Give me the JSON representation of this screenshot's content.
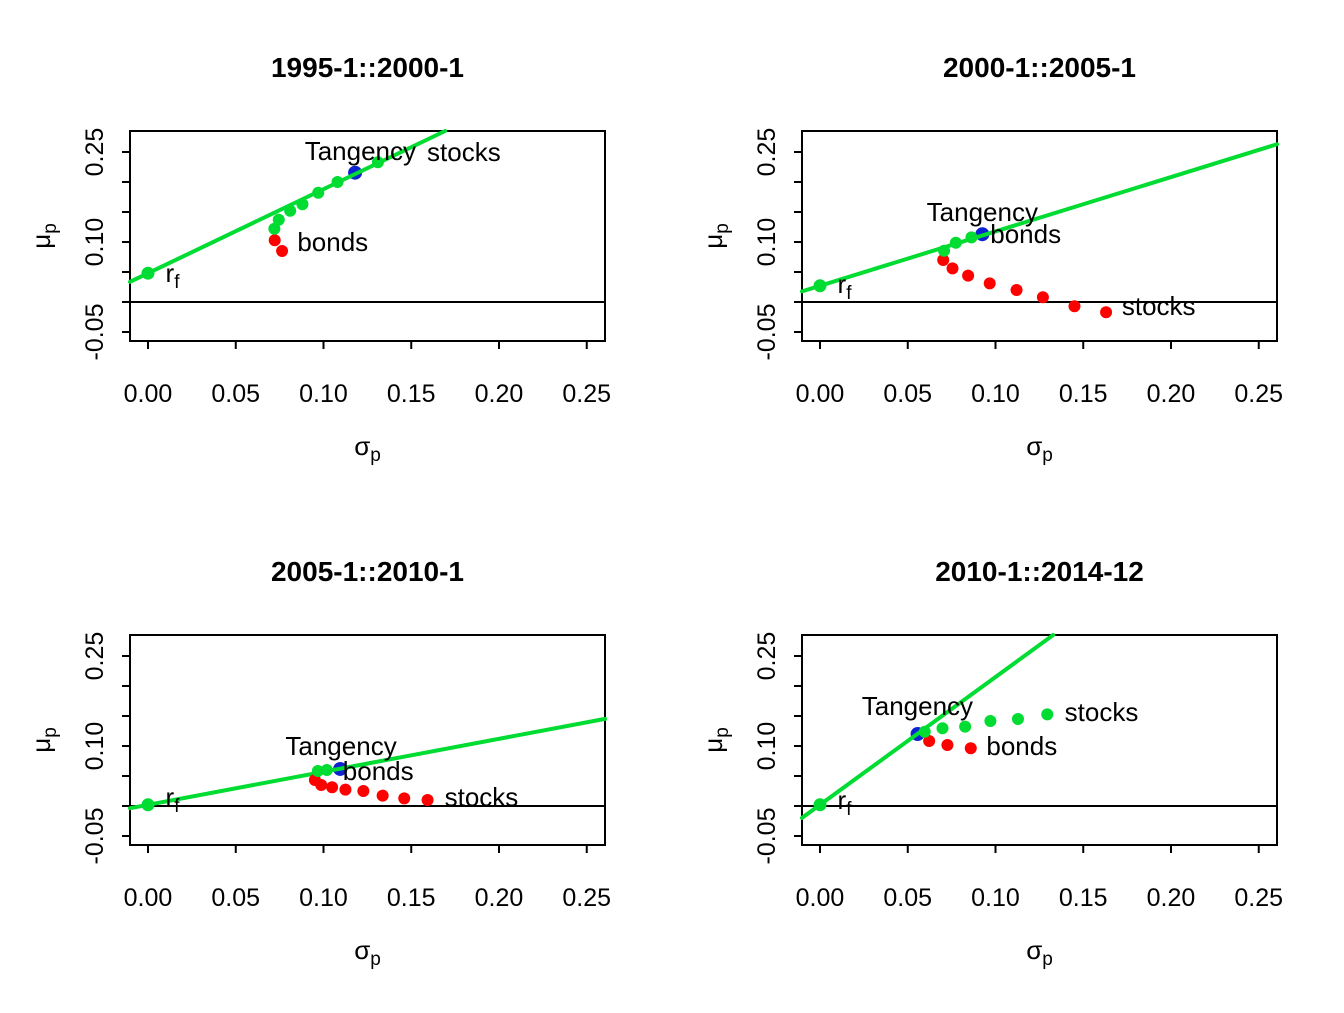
{
  "colors": {
    "line_green": "#00DC32",
    "point_green": "#00DC32",
    "point_red": "#FF0000",
    "tangency_blue": "#0D22D0",
    "axis_black": "#000000",
    "background": "#FFFFFF"
  },
  "axis": {
    "xlabel_base": "σ",
    "xlabel_sub": "p",
    "ylabel_base": "μ",
    "ylabel_sub": "p",
    "x_ticks": [
      0,
      0.05,
      0.1,
      0.15,
      0.2,
      0.25
    ],
    "x_tick_labels": [
      "0.00",
      "0.05",
      "0.10",
      "0.15",
      "0.20",
      "0.25"
    ],
    "y_ticks": [
      -0.05,
      0.0,
      0.05,
      0.1,
      0.15,
      0.2,
      0.25
    ],
    "y_tick_labels": [
      "-0.05",
      "",
      "",
      "0.10",
      "",
      "",
      "0.25"
    ],
    "xlim": [
      -0.0103,
      0.2604
    ],
    "ylim": [
      -0.065,
      0.285
    ],
    "zero_hline": 0.0
  },
  "labels_text": {
    "tangency": "Tangency",
    "stocks": "stocks",
    "bonds": "bonds",
    "rf_base": "r",
    "rf_sub": "f"
  },
  "chart_data": [
    {
      "type": "scatter",
      "title": "1995-1::2000-1",
      "rf": 0.048,
      "cml_slope": 1.4,
      "tangency_point": {
        "x": 0.118,
        "y": 0.2155
      },
      "green_points": [
        [
          0.072,
          0.122
        ],
        [
          0.0745,
          0.137
        ],
        [
          0.081,
          0.152
        ],
        [
          0.088,
          0.163
        ],
        [
          0.097,
          0.182
        ],
        [
          0.108,
          0.2
        ],
        [
          0.131,
          0.233
        ]
      ],
      "red_points": [
        [
          0.0722,
          0.103
        ],
        [
          0.0764,
          0.085
        ]
      ],
      "labels": {
        "tangency": {
          "x": 0.121,
          "y": 0.2367,
          "anchor": "middle"
        },
        "stocks": {
          "x": 0.159,
          "y": 0.235,
          "anchor": "start"
        },
        "bonds": {
          "x": 0.0851,
          "y": 0.085,
          "anchor": "start"
        },
        "rf": {
          "x": 0.01,
          "y": 0.033,
          "anchor": "start"
        }
      }
    },
    {
      "type": "scatter",
      "title": "2000-1::2005-1",
      "rf": 0.027,
      "cml_slope": 0.906,
      "tangency_point": {
        "x": 0.0925,
        "y": 0.113
      },
      "green_points": [
        [
          0.0707,
          0.0855
        ],
        [
          0.0774,
          0.0988
        ],
        [
          0.0863,
          0.1078
        ]
      ],
      "red_points": [
        [
          0.0702,
          0.07
        ],
        [
          0.0755,
          0.056
        ],
        [
          0.0844,
          0.044
        ],
        [
          0.0967,
          0.031
        ],
        [
          0.112,
          0.02
        ],
        [
          0.127,
          0.008
        ],
        [
          0.145,
          -0.007
        ],
        [
          0.163,
          -0.017
        ]
      ],
      "labels": {
        "tangency": {
          "x": 0.0925,
          "y": 0.135,
          "anchor": "middle"
        },
        "bonds": {
          "x": 0.097,
          "y": 0.0983,
          "anchor": "start"
        },
        "stocks": {
          "x": 0.172,
          "y": -0.022,
          "anchor": "start"
        },
        "rf": {
          "x": 0.01,
          "y": 0.015,
          "anchor": "start"
        }
      }
    },
    {
      "type": "scatter",
      "title": "2005-1::2010-1",
      "rf": 0.002,
      "cml_slope": 0.55,
      "tangency_point": {
        "x": 0.1095,
        "y": 0.0617
      },
      "green_points": [
        [
          0.0968,
          0.0583
        ],
        [
          0.1019,
          0.06
        ]
      ],
      "red_points": [
        [
          0.0951,
          0.0433
        ],
        [
          0.0987,
          0.035
        ],
        [
          0.1049,
          0.0312
        ],
        [
          0.1125,
          0.0272
        ],
        [
          0.1227,
          0.025
        ],
        [
          0.1337,
          0.0172
        ],
        [
          0.146,
          0.0128
        ],
        [
          0.1593,
          0.01
        ]
      ],
      "labels": {
        "tangency": {
          "x": 0.11,
          "y": 0.085,
          "anchor": "middle"
        },
        "bonds": {
          "x": 0.111,
          "y": 0.0433,
          "anchor": "start"
        },
        "stocks": {
          "x": 0.169,
          "y": 0.0,
          "anchor": "start"
        },
        "rf": {
          "x": 0.01,
          "y": 0.0,
          "anchor": "start"
        }
      }
    },
    {
      "type": "scatter",
      "title": "2010-1::2014-12",
      "rf": 0.002,
      "cml_slope": 2.13,
      "tangency_point": {
        "x": 0.0556,
        "y": 0.12
      },
      "green_points": [
        [
          0.0597,
          0.1238
        ],
        [
          0.0698,
          0.1295
        ],
        [
          0.0827,
          0.1322
        ],
        [
          0.0971,
          0.1417
        ],
        [
          0.1128,
          0.145
        ],
        [
          0.1295,
          0.1528
        ]
      ],
      "red_points": [
        [
          0.0622,
          0.1083
        ],
        [
          0.0726,
          0.1017
        ],
        [
          0.0859,
          0.0962
        ]
      ],
      "labels": {
        "tangency": {
          "x": 0.0555,
          "y": 0.1517,
          "anchor": "middle"
        },
        "stocks": {
          "x": 0.1394,
          "y": 0.1417,
          "anchor": "start"
        },
        "bonds": {
          "x": 0.0948,
          "y": 0.085,
          "anchor": "start"
        },
        "rf": {
          "x": 0.01,
          "y": -0.005,
          "anchor": "start"
        }
      }
    }
  ]
}
